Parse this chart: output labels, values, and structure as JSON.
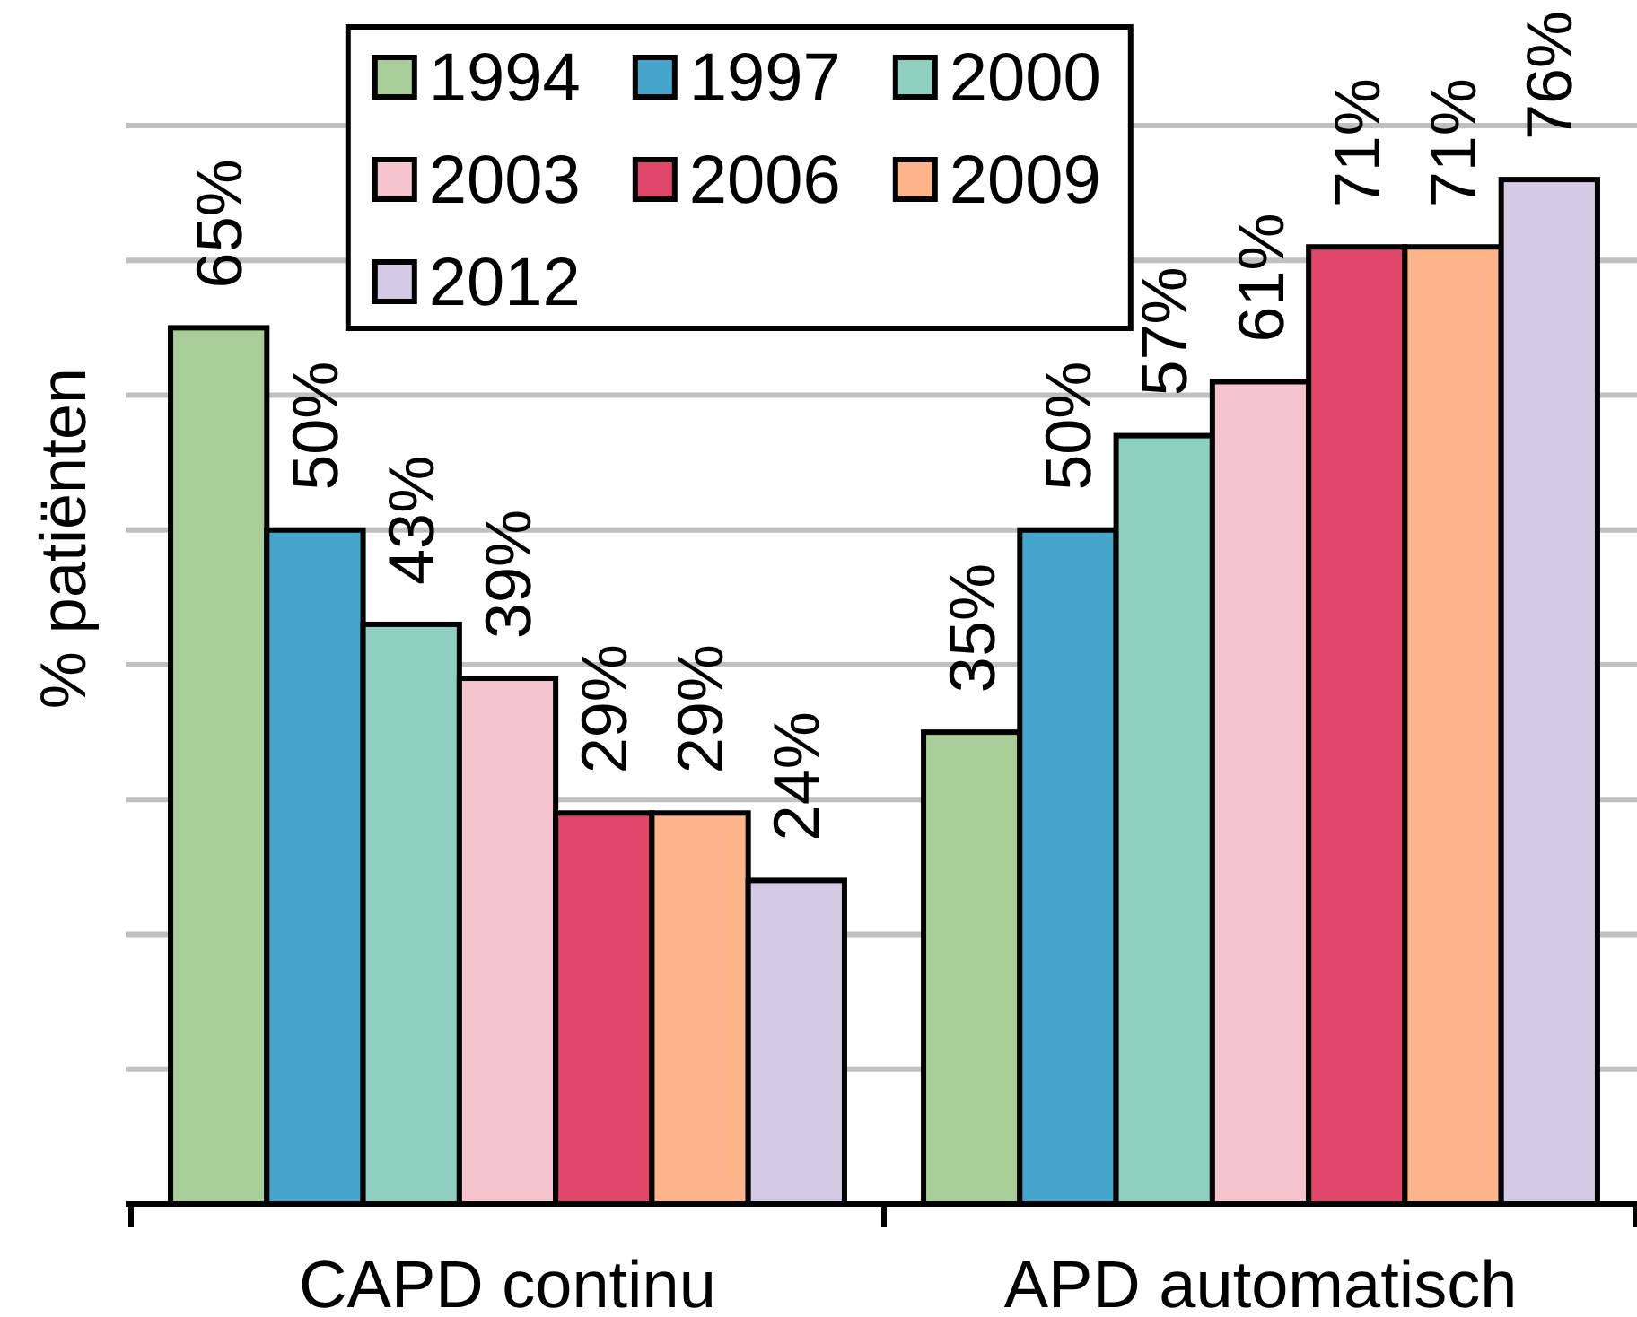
{
  "chart_data": {
    "type": "bar",
    "ylabel": "% patiënten",
    "categories": [
      "CAPD continu",
      "APD automatisch"
    ],
    "series": [
      {
        "name": "1994",
        "color": "#a8cd98",
        "values": [
          65,
          35
        ],
        "value_labels": [
          "65%",
          "35%"
        ]
      },
      {
        "name": "1997",
        "color": "#45a5cc",
        "values": [
          50,
          50
        ],
        "value_labels": [
          "50%",
          "50%"
        ]
      },
      {
        "name": "2000",
        "color": "#8ecfc2",
        "values": [
          43,
          57
        ],
        "value_labels": [
          "43%",
          "57%"
        ]
      },
      {
        "name": "2003",
        "color": "#f6c4cf",
        "values": [
          39,
          61
        ],
        "value_labels": [
          "39%",
          "61%"
        ]
      },
      {
        "name": "2006",
        "color": "#e0456a",
        "values": [
          29,
          71
        ],
        "value_labels": [
          "29%",
          "71%"
        ]
      },
      {
        "name": "2009",
        "color": "#fdb48a",
        "values": [
          29,
          71
        ],
        "value_labels": [
          "29%",
          "71%"
        ]
      },
      {
        "name": "2012",
        "color": "#d4cae6",
        "values": [
          24,
          76
        ],
        "value_labels": [
          "24%",
          "76%"
        ]
      }
    ],
    "ylim": [
      0,
      80
    ],
    "yticks": [
      {
        "value": 0,
        "label": null
      },
      {
        "value": 10,
        "label": null
      },
      {
        "value": 20,
        "label": null
      },
      {
        "value": 30,
        "label": null
      },
      {
        "value": 40,
        "label": null
      },
      {
        "value": 50,
        "label": null
      },
      {
        "value": 60,
        "label": null
      },
      {
        "value": 70,
        "label": null
      },
      {
        "value": 80,
        "label": null
      }
    ],
    "tick_labels": "x",
    "grid": "y",
    "legend": "top"
  }
}
